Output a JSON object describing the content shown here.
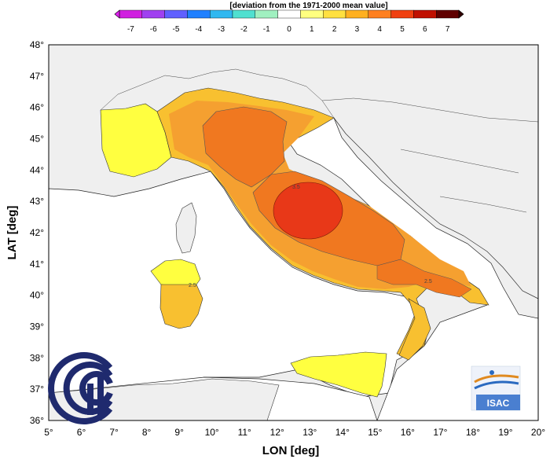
{
  "colorbar": {
    "title": "[deviation from the 1971-2000 mean value]",
    "ticks": [
      "-7",
      "-6",
      "-5",
      "-4",
      "-3",
      "-2",
      "-1",
      "0",
      "1",
      "2",
      "3",
      "4",
      "5",
      "6",
      "7"
    ],
    "colors": [
      "#d020e0",
      "#a040f0",
      "#6060ff",
      "#2080ff",
      "#30b8f0",
      "#50e0d0",
      "#a0f0c0",
      "#ffffff",
      "#ffff80",
      "#ffe040",
      "#ffb020",
      "#ff8020",
      "#f04010",
      "#c01000",
      "#600000"
    ]
  },
  "axes": {
    "xlabel": "LON [deg]",
    "ylabel": "LAT [deg]",
    "xticks": [
      "5°",
      "6°",
      "7°",
      "8°",
      "9°",
      "10°",
      "11°",
      "12°",
      "13°",
      "14°",
      "15°",
      "16°",
      "17°",
      "18°",
      "19°",
      "20°"
    ],
    "yticks": [
      "36°",
      "37°",
      "38°",
      "39°",
      "40°",
      "41°",
      "42°",
      "43°",
      "44°",
      "45°",
      "46°",
      "47°",
      "48°"
    ],
    "xlim": [
      5,
      20
    ],
    "ylim": [
      36,
      48
    ]
  },
  "contour_labels": [
    "2.5",
    "3.5",
    "2.5"
  ],
  "map_colors": {
    "background": "#efefef",
    "sea": "#ffffff",
    "level_2": "#ffff40",
    "level_2_5": "#f8c030",
    "level_3": "#f5a030",
    "level_3_5": "#f07820",
    "level_4": "#e83818"
  },
  "logos": {
    "left_name": "cnr-logo",
    "right_name": "isac-logo",
    "right_text": "ISAC"
  }
}
